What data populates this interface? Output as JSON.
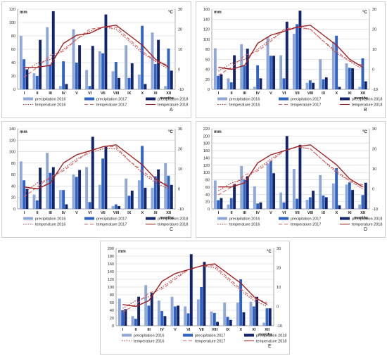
{
  "legend_labels": {
    "p2016": "precipitation 2016",
    "p2017": "precipitation 2017",
    "p2018": "precipitation 2018",
    "t2016": "temperature 2016",
    "t2017": "temperature 2017",
    "t2018": "temperature 2018"
  },
  "colors": {
    "p2016": "#8fa8d8",
    "p2017": "#2e63c4",
    "p2018": "#12246b",
    "t2016": "#b03030",
    "t2017": "#d96060",
    "t2018": "#a02020",
    "grid": "#d0d0d0"
  },
  "chart_data": [
    {
      "panel": "A",
      "type": "bar",
      "letter": "A",
      "ylabel_left": "mm",
      "ylabel_right": "°C",
      "xlabel": "months",
      "categories": [
        "I",
        "II",
        "III",
        "IV",
        "V",
        "VI",
        "VII",
        "VIII",
        "IX",
        "X",
        "XI",
        "XII"
      ],
      "ylim": [
        0,
        120
      ],
      "y2lim": [
        -10,
        30
      ],
      "yticks": [
        0,
        20,
        40,
        60,
        80,
        100,
        120
      ],
      "y2ticks": [
        -10,
        0,
        10,
        20,
        30
      ],
      "series": [
        {
          "key": "p2016",
          "kind": "bar",
          "values": [
            80,
            24,
            93,
            5,
            90,
            29,
            57,
            27,
            66,
            22,
            85,
            5
          ]
        },
        {
          "key": "p2017",
          "kind": "bar",
          "values": [
            45,
            20,
            37,
            42,
            40,
            5,
            54,
            41,
            17,
            95,
            38,
            61
          ]
        },
        {
          "key": "p2018",
          "kind": "bar",
          "values": [
            30,
            74,
            117,
            8,
            66,
            65,
            112,
            17,
            39,
            8,
            74,
            28
          ]
        },
        {
          "key": "t2016",
          "kind": "line",
          "values": [
            -1,
            3,
            5,
            10,
            15,
            19,
            21,
            20,
            14,
            8,
            4,
            0
          ]
        },
        {
          "key": "t2017",
          "kind": "line",
          "values": [
            -4,
            1,
            7,
            9,
            15,
            20,
            21,
            21,
            15,
            9,
            4,
            2
          ]
        },
        {
          "key": "t2018",
          "kind": "line",
          "values": [
            1,
            1,
            2,
            13,
            17,
            18,
            21,
            22,
            17,
            12,
            5,
            1
          ]
        }
      ]
    },
    {
      "panel": "B",
      "type": "bar",
      "letter": "B",
      "ylabel_left": "mm",
      "ylabel_right": "°C",
      "xlabel": "months",
      "categories": [
        "I",
        "II",
        "III",
        "IV",
        "V",
        "VI",
        "VII",
        "VIII",
        "IX",
        "X",
        "XI",
        "XII"
      ],
      "ylim": [
        0,
        160
      ],
      "y2lim": [
        -10,
        30
      ],
      "yticks": [
        0,
        20,
        40,
        60,
        80,
        100,
        120,
        140,
        160
      ],
      "y2ticks": [
        -10,
        0,
        10,
        20,
        30
      ],
      "series": [
        {
          "key": "p2016",
          "kind": "bar",
          "values": [
            82,
            22,
            90,
            5,
            105,
            68,
            111,
            13,
            60,
            95,
            52,
            5
          ]
        },
        {
          "key": "p2017",
          "kind": "bar",
          "values": [
            27,
            14,
            47,
            48,
            67,
            22,
            130,
            18,
            20,
            107,
            43,
            62
          ]
        },
        {
          "key": "p2018",
          "kind": "bar",
          "values": [
            30,
            68,
            81,
            22,
            67,
            135,
            157,
            13,
            24,
            5,
            42,
            16
          ]
        },
        {
          "key": "t2016",
          "kind": "line",
          "values": [
            -1,
            3,
            5,
            10,
            15,
            19,
            21,
            20,
            14,
            8,
            4,
            0
          ]
        },
        {
          "key": "t2017",
          "kind": "line",
          "values": [
            -3,
            1,
            7,
            9,
            14,
            20,
            21,
            20,
            14,
            9,
            4,
            2
          ]
        },
        {
          "key": "t2018",
          "kind": "line",
          "values": [
            1,
            0,
            2,
            13,
            17,
            19,
            21,
            22,
            17,
            12,
            5,
            1
          ]
        }
      ]
    },
    {
      "panel": "C",
      "type": "bar",
      "letter": "C",
      "ylabel_left": "mm",
      "ylabel_right": "°C",
      "xlabel": "months",
      "categories": [
        "I",
        "II",
        "III",
        "IV",
        "V",
        "VI",
        "VII",
        "VIII",
        "IX",
        "X",
        "XI",
        "XII"
      ],
      "ylim": [
        0,
        140
      ],
      "y2lim": [
        -10,
        30
      ],
      "yticks": [
        0,
        20,
        40,
        60,
        80,
        100,
        120,
        140
      ],
      "y2ticks": [
        -10,
        0,
        10,
        20,
        30
      ],
      "series": [
        {
          "key": "p2016",
          "kind": "bar",
          "values": [
            83,
            25,
            98,
            33,
            60,
            73,
            42,
            5,
            53,
            50,
            37,
            80
          ]
        },
        {
          "key": "p2017",
          "kind": "bar",
          "values": [
            50,
            15,
            63,
            33,
            56,
            12,
            88,
            8,
            23,
            110,
            57,
            58
          ]
        },
        {
          "key": "p2018",
          "kind": "bar",
          "values": [
            35,
            72,
            73,
            8,
            68,
            126,
            109,
            5,
            32,
            37,
            69,
            42
          ]
        },
        {
          "key": "t2016",
          "kind": "line",
          "values": [
            -2,
            3,
            5,
            10,
            15,
            18,
            20,
            20,
            14,
            8,
            3,
            0
          ]
        },
        {
          "key": "t2017",
          "kind": "line",
          "values": [
            -4,
            1,
            6,
            9,
            14,
            19,
            21,
            21,
            14,
            9,
            4,
            2
          ]
        },
        {
          "key": "t2018",
          "kind": "line",
          "values": [
            1,
            0,
            3,
            13,
            17,
            19,
            21,
            22,
            17,
            12,
            5,
            1
          ]
        }
      ]
    },
    {
      "panel": "D",
      "type": "bar",
      "letter": "D",
      "ylabel_left": "mm",
      "ylabel_right": "°C",
      "xlabel": "months",
      "categories": [
        "I",
        "II",
        "III",
        "IV",
        "V",
        "VI",
        "VII",
        "VIII",
        "IX",
        "X",
        "XI",
        "XII"
      ],
      "ylim": [
        0,
        220
      ],
      "y2lim": [
        -10,
        30
      ],
      "yticks": [
        0,
        20,
        40,
        60,
        80,
        100,
        120,
        140,
        160,
        180,
        200,
        220
      ],
      "y2ticks": [
        -10,
        0,
        10,
        20,
        30
      ],
      "series": [
        {
          "key": "p2016",
          "kind": "bar",
          "values": [
            78,
            12,
            118,
            62,
            124,
            45,
            110,
            25,
            93,
            70,
            67,
            12
          ]
        },
        {
          "key": "p2017",
          "kind": "bar",
          "values": [
            24,
            30,
            80,
            15,
            132,
            18,
            28,
            32,
            37,
            112,
            73,
            38
          ]
        },
        {
          "key": "p2018",
          "kind": "bar",
          "values": [
            30,
            68,
            90,
            18,
            98,
            200,
            176,
            50,
            32,
            10,
            52,
            72
          ]
        },
        {
          "key": "t2016",
          "kind": "line",
          "values": [
            -1,
            3,
            5,
            10,
            15,
            19,
            21,
            20,
            14,
            8,
            4,
            0
          ]
        },
        {
          "key": "t2017",
          "kind": "line",
          "values": [
            -3,
            1,
            7,
            9,
            14,
            19,
            21,
            20,
            14,
            9,
            4,
            2
          ]
        },
        {
          "key": "t2018",
          "kind": "line",
          "values": [
            1,
            1,
            3,
            13,
            17,
            19,
            21,
            22,
            17,
            12,
            5,
            1
          ]
        }
      ]
    },
    {
      "panel": "E",
      "type": "bar",
      "letter": "E",
      "ylabel_left": "mm",
      "ylabel_right": "°C",
      "xlabel": "months",
      "categories": [
        "I",
        "II",
        "III",
        "IV",
        "V",
        "VI",
        "VII",
        "VIII",
        "IX",
        "X",
        "XI",
        "XII"
      ],
      "ylim": [
        0,
        200
      ],
      "y2lim": [
        -10,
        30
      ],
      "yticks": [
        0,
        20,
        40,
        60,
        80,
        100,
        120,
        140,
        160,
        180,
        200
      ],
      "y2ticks": [
        -10,
        0,
        10,
        20,
        30
      ],
      "series": [
        {
          "key": "p2016",
          "kind": "bar",
          "values": [
            70,
            25,
            105,
            65,
            75,
            50,
            68,
            37,
            60,
            60,
            62,
            8
          ]
        },
        {
          "key": "p2017",
          "kind": "bar",
          "values": [
            40,
            18,
            52,
            38,
            50,
            32,
            100,
            33,
            23,
            120,
            50,
            45
          ]
        },
        {
          "key": "p2018",
          "kind": "bar",
          "values": [
            43,
            75,
            85,
            25,
            52,
            185,
            165,
            10,
            15,
            35,
            75,
            45
          ]
        },
        {
          "key": "t2016",
          "kind": "line",
          "values": [
            -1,
            3,
            5,
            10,
            15,
            19,
            21,
            20,
            14,
            8,
            3,
            0
          ]
        },
        {
          "key": "t2017",
          "kind": "line",
          "values": [
            -3,
            1,
            7,
            9,
            14,
            19,
            21,
            21,
            15,
            9,
            4,
            2
          ]
        },
        {
          "key": "t2018",
          "kind": "line",
          "values": [
            1,
            0,
            3,
            13,
            17,
            19,
            21,
            22,
            17,
            12,
            5,
            1
          ]
        }
      ]
    }
  ]
}
